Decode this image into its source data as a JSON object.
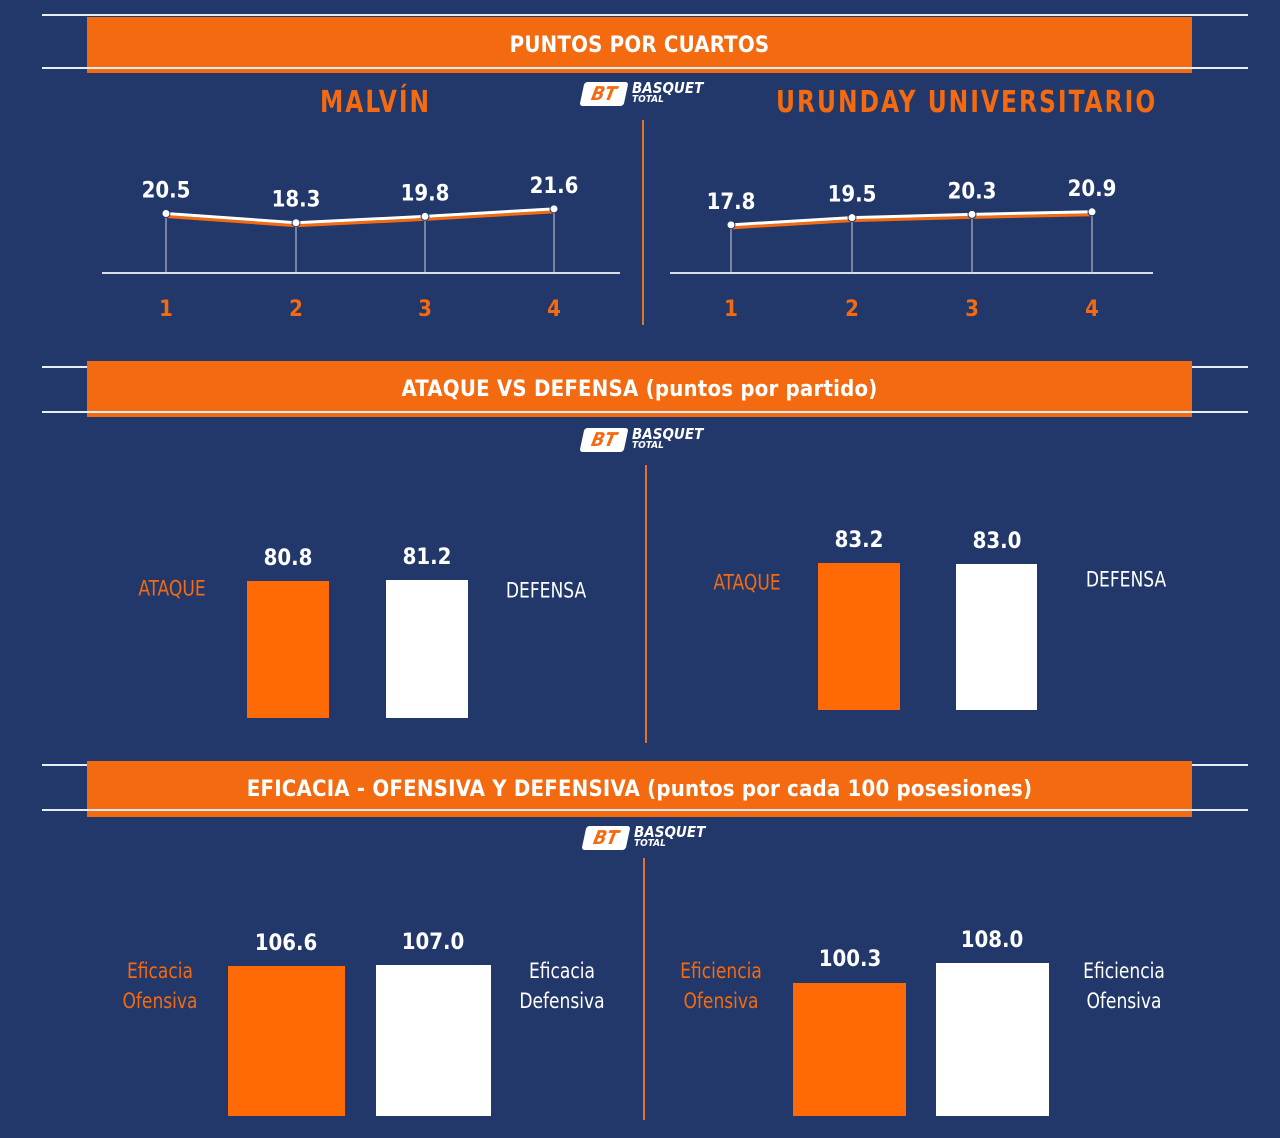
{
  "sections": {
    "quarters_title": "PUNTOS POR CUARTOS",
    "attack_title": "ATAQUE VS DEFENSA (puntos por partido)",
    "efficiency_title": "EFICACIA - OFENSIVA Y DEFENSIVA (puntos por cada 100 posesiones)"
  },
  "logo": {
    "badge": "BT",
    "line1": "BASQUET",
    "line2": "TOTAL"
  },
  "teams": {
    "left": "MALVÍN",
    "right": "URUNDAY UNIVERSITARIO"
  },
  "colors": {
    "background": "#22386a",
    "accent": "#f36a10",
    "bar_orange": "#ff6a06",
    "bar_white": "#ffffff"
  },
  "chart_data": [
    {
      "type": "line",
      "title": "PUNTOS POR CUARTOS",
      "series": [
        {
          "name": "MALVÍN",
          "values": [
            20.5,
            18.3,
            19.8,
            21.6
          ]
        }
      ],
      "categories": [
        "1",
        "2",
        "3",
        "4"
      ]
    },
    {
      "type": "line",
      "title": "PUNTOS POR CUARTOS",
      "series": [
        {
          "name": "URUNDAY UNIVERSITARIO",
          "values": [
            17.8,
            19.5,
            20.3,
            20.9
          ]
        }
      ],
      "categories": [
        "1",
        "2",
        "3",
        "4"
      ]
    },
    {
      "type": "bar",
      "title": "ATAQUE VS DEFENSA (puntos por partido)",
      "categories": [
        "ATAQUE",
        "DEFENSA"
      ],
      "values": [
        80.8,
        81.2
      ],
      "labels": [
        "80.8",
        "81.2"
      ]
    },
    {
      "type": "bar",
      "title": "ATAQUE VS DEFENSA (puntos por partido)",
      "categories": [
        "ATAQUE",
        "DEFENSA"
      ],
      "values": [
        83.2,
        83.0
      ],
      "labels": [
        "83.2",
        "83.0"
      ]
    },
    {
      "type": "bar",
      "title": "EFICACIA - OFENSIVA Y DEFENSIVA (puntos por cada 100 posesiones)",
      "categories": [
        "Eficacia Ofensiva",
        "Eficacia Defensiva"
      ],
      "values": [
        106.6,
        107.0
      ],
      "labels": [
        "106.6",
        "107.0"
      ]
    },
    {
      "type": "bar",
      "title": "EFICACIA - OFENSIVA Y DEFENSIVA (puntos por cada 100 posesiones)",
      "categories": [
        "Eficiencia Ofensiva",
        "Eficiencia Ofensiva"
      ],
      "values": [
        100.3,
        108.0
      ],
      "labels": [
        "100.3",
        "108.0"
      ]
    }
  ]
}
